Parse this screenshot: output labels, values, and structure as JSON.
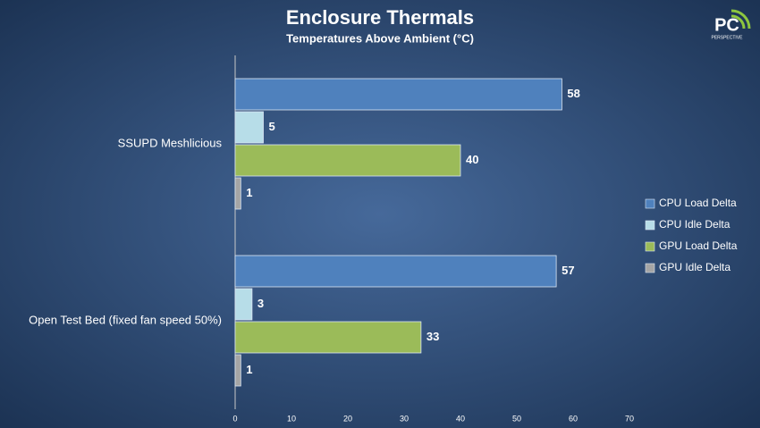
{
  "chart_data": {
    "type": "bar",
    "orientation": "horizontal",
    "title": "Enclosure Thermals",
    "subtitle": "Temperatures Above Ambient (°C)",
    "logo": "PC",
    "logo_subtext": "PERSPECTIVE",
    "categories": [
      "SSUPD Meshlicious",
      "Open Test Bed (fixed fan speed 50%)"
    ],
    "series": [
      {
        "name": "CPU Load Delta",
        "color": "#4f81bd",
        "values": [
          58,
          57
        ]
      },
      {
        "name": "CPU Idle Delta",
        "color": "#b7dde8",
        "values": [
          5,
          3
        ]
      },
      {
        "name": "GPU Load Delta",
        "color": "#9bbb59",
        "values": [
          40,
          33
        ]
      },
      {
        "name": "GPU Idle Delta",
        "color": "#a5a5a5",
        "values": [
          1,
          1
        ]
      }
    ],
    "xlim": [
      0,
      70
    ],
    "xticks": [
      0,
      10,
      20,
      30,
      40,
      50,
      60,
      70
    ],
    "legend": "right",
    "grid": false
  }
}
